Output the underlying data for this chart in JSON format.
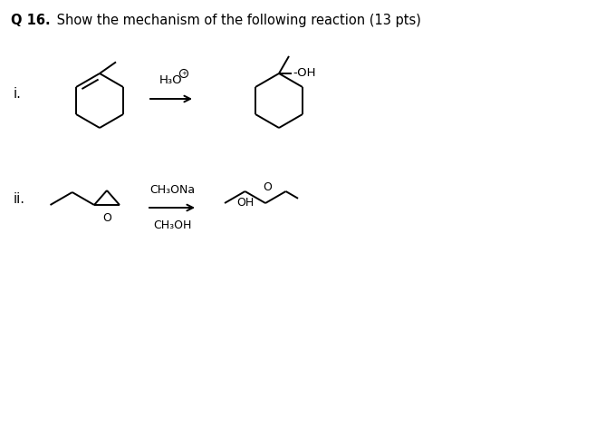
{
  "bg": "#ffffff",
  "lc": "#000000",
  "title_bold": "Q 16.",
  "title_rest": " Show the mechanism of the following reaction (13 pts)",
  "label_i": "i.",
  "label_ii": "ii.",
  "reagent_i_text": "H₃O",
  "reagent_i_sup": "⁺",
  "reagent_ii_top": "CH₃ONa",
  "reagent_ii_bot": "CH₃OH",
  "oh_text": "-OH",
  "oh2_text": "OH",
  "o_text": "O"
}
